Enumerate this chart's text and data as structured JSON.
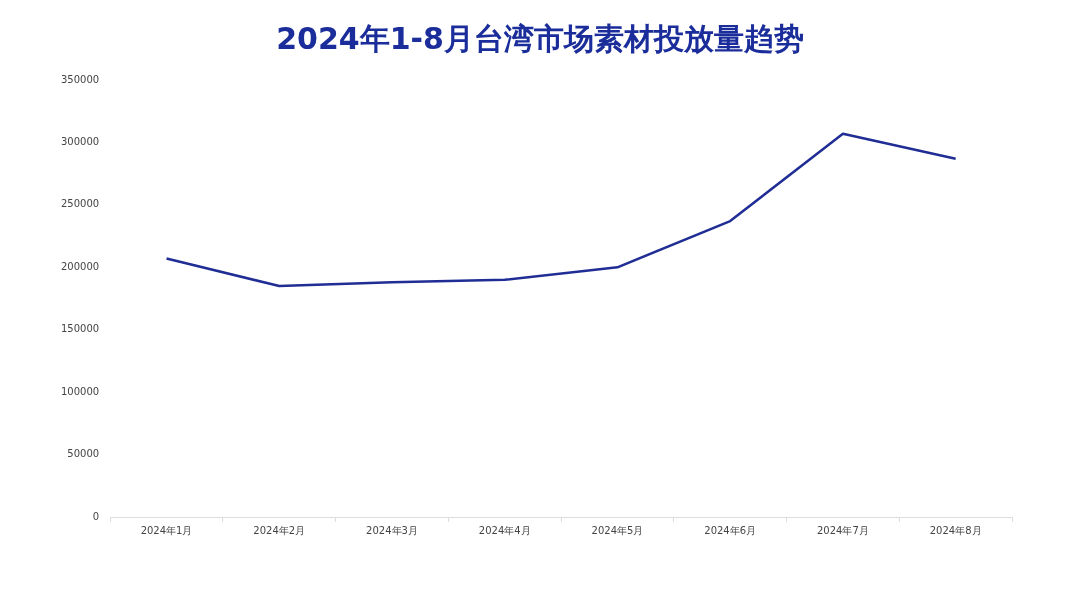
{
  "chart_data": {
    "type": "line",
    "title": "2024年1-8月台湾市场素材投放量趋势",
    "categories": [
      "2024年1月",
      "2024年2月",
      "2024年3月",
      "2024年4月",
      "2024年5月",
      "2024年6月",
      "2024年7月",
      "2024年8月"
    ],
    "series": [
      {
        "color": "#1f2d94",
        "values": [
          207000,
          185000,
          188000,
          190000,
          200000,
          237000,
          307000,
          287000
        ]
      }
    ],
    "ylim": [
      0,
      350000
    ],
    "yticks": [
      0,
      50000,
      100000,
      150000,
      200000,
      250000,
      300000,
      350000
    ],
    "grid": false,
    "legend": false,
    "marker": "none",
    "line_style": "solid"
  }
}
